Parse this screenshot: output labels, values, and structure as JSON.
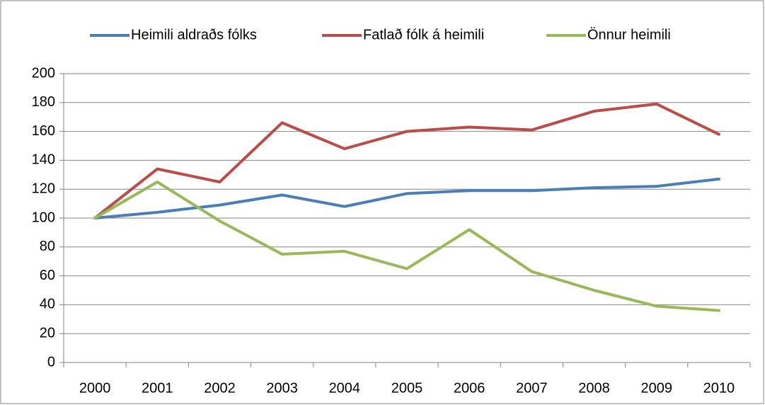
{
  "chart_data": {
    "type": "line",
    "categories": [
      "2000",
      "2001",
      "2002",
      "2003",
      "2004",
      "2005",
      "2006",
      "2007",
      "2008",
      "2009",
      "2010"
    ],
    "series": [
      {
        "name": "Heimili aldraðs fólks",
        "color": "#4a7ebb",
        "values": [
          100,
          104,
          109,
          116,
          108,
          117,
          119,
          119,
          121,
          122,
          127
        ]
      },
      {
        "name": "Fatlað fólk á heimili",
        "color": "#be4b48",
        "values": [
          100,
          134,
          125,
          166,
          148,
          160,
          163,
          161,
          174,
          179,
          158
        ]
      },
      {
        "name": "Önnur heimili",
        "color": "#98b954",
        "values": [
          100,
          125,
          98,
          75,
          77,
          65,
          92,
          63,
          50,
          39,
          36
        ]
      }
    ],
    "ylim": [
      0,
      200
    ],
    "yticks": [
      0,
      20,
      40,
      60,
      80,
      100,
      120,
      140,
      160,
      180,
      200
    ],
    "grid": true,
    "legend": "top"
  }
}
